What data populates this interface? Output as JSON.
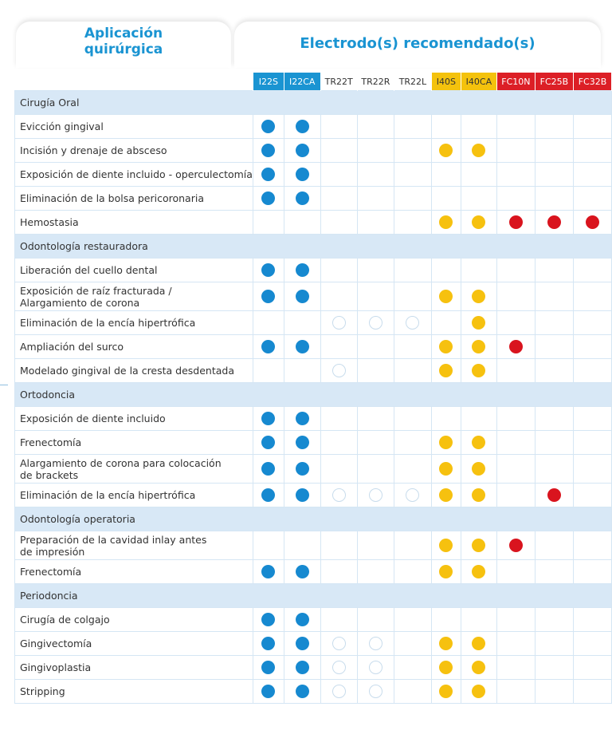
{
  "header": {
    "left_line1": "Aplicación",
    "left_line2": "quirúrgica",
    "right": "Electrodo(s) recomendado(s)"
  },
  "columns": [
    {
      "label": "I22S",
      "color": "blue"
    },
    {
      "label": "I22CA",
      "color": "blue"
    },
    {
      "label": "TR22T",
      "color": "none"
    },
    {
      "label": "TR22R",
      "color": "none"
    },
    {
      "label": "TR22L",
      "color": "none"
    },
    {
      "label": "I40S",
      "color": "yellow"
    },
    {
      "label": "I40CA",
      "color": "yellow"
    },
    {
      "label": "FC10N",
      "color": "red"
    },
    {
      "label": "FC25B",
      "color": "red"
    },
    {
      "label": "FC32B",
      "color": "red"
    }
  ],
  "legend_colors": {
    "blue": "#1689d0",
    "yellow": "#f6c10f",
    "red": "#d9141e",
    "header_blue": "#1a94d2"
  },
  "sections": [
    {
      "title": "Cirugía Oral",
      "rows": [
        {
          "label": "Evicción gingival",
          "marks": [
            "B",
            "B",
            "",
            "",
            "",
            "",
            "",
            "",
            "",
            ""
          ]
        },
        {
          "label": "Incisión y drenaje de absceso",
          "marks": [
            "B",
            "B",
            "",
            "",
            "",
            "Y",
            "Y",
            "",
            "",
            ""
          ]
        },
        {
          "label": "Exposición de diente incluido - operculectomía",
          "marks": [
            "B",
            "B",
            "",
            "",
            "",
            "",
            "",
            "",
            "",
            ""
          ]
        },
        {
          "label": "Eliminación de la bolsa pericoronaria",
          "marks": [
            "B",
            "B",
            "",
            "",
            "",
            "",
            "",
            "",
            "",
            ""
          ]
        },
        {
          "label": "Hemostasia",
          "marks": [
            "",
            "",
            "",
            "",
            "",
            "Y",
            "Y",
            "R",
            "R",
            "R"
          ]
        }
      ]
    },
    {
      "title": "Odontología restauradora",
      "rows": [
        {
          "label": "Liberación del cuello dental",
          "marks": [
            "B",
            "B",
            "",
            "",
            "",
            "",
            "",
            "",
            "",
            ""
          ]
        },
        {
          "label": "Exposición de raíz fracturada /",
          "label2": "Alargamiento de corona",
          "marks": [
            "B",
            "B",
            "",
            "",
            "",
            "Y",
            "Y",
            "",
            "",
            ""
          ]
        },
        {
          "label": "Eliminación de la encía hipertrófica",
          "marks": [
            "",
            "",
            "O",
            "O",
            "O",
            "",
            "Y",
            "",
            "",
            ""
          ]
        },
        {
          "label": "Ampliación del surco",
          "marks": [
            "B",
            "B",
            "",
            "",
            "",
            "Y",
            "Y",
            "R",
            "",
            ""
          ]
        },
        {
          "label": "Modelado gingival de la cresta desdentada",
          "marks": [
            "",
            "",
            "O",
            "",
            "",
            "Y",
            "Y",
            "",
            "",
            ""
          ]
        }
      ]
    },
    {
      "title": "Ortodoncia",
      "rows": [
        {
          "label": "Exposición de diente incluido",
          "marks": [
            "B",
            "B",
            "",
            "",
            "",
            "",
            "",
            "",
            "",
            ""
          ]
        },
        {
          "label": "Frenectomía",
          "marks": [
            "B",
            "B",
            "",
            "",
            "",
            "Y",
            "Y",
            "",
            "",
            ""
          ]
        },
        {
          "label": "Alargamiento de corona para colocación",
          "label2": "de brackets",
          "marks": [
            "B",
            "B",
            "",
            "",
            "",
            "Y",
            "Y",
            "",
            "",
            ""
          ]
        },
        {
          "label": "Eliminación de la encía hipertrófica",
          "marks": [
            "B",
            "B",
            "O",
            "O",
            "O",
            "Y",
            "Y",
            "",
            "R",
            ""
          ]
        }
      ]
    },
    {
      "title": "Odontología operatoria",
      "rows": [
        {
          "label": "Preparación de la cavidad inlay antes",
          "label2": "de impresión",
          "marks": [
            "",
            "",
            "",
            "",
            "",
            "Y",
            "Y",
            "R",
            "",
            ""
          ]
        },
        {
          "label": "Frenectomía",
          "marks": [
            "B",
            "B",
            "",
            "",
            "",
            "Y",
            "Y",
            "",
            "",
            ""
          ]
        }
      ]
    },
    {
      "title": "Periodoncia",
      "rows": [
        {
          "label": "Cirugía de colgajo",
          "marks": [
            "B",
            "B",
            "",
            "",
            "",
            "",
            "",
            "",
            "",
            ""
          ]
        },
        {
          "label": "Gingivectomía",
          "marks": [
            "B",
            "B",
            "O",
            "O",
            "",
            "Y",
            "Y",
            "",
            "",
            ""
          ]
        },
        {
          "label": "Gingivoplastia",
          "marks": [
            "B",
            "B",
            "O",
            "O",
            "",
            "Y",
            "Y",
            "",
            "",
            ""
          ]
        },
        {
          "label": "Stripping",
          "marks": [
            "B",
            "B",
            "O",
            "O",
            "",
            "Y",
            "Y",
            "",
            "",
            ""
          ]
        }
      ]
    }
  ]
}
